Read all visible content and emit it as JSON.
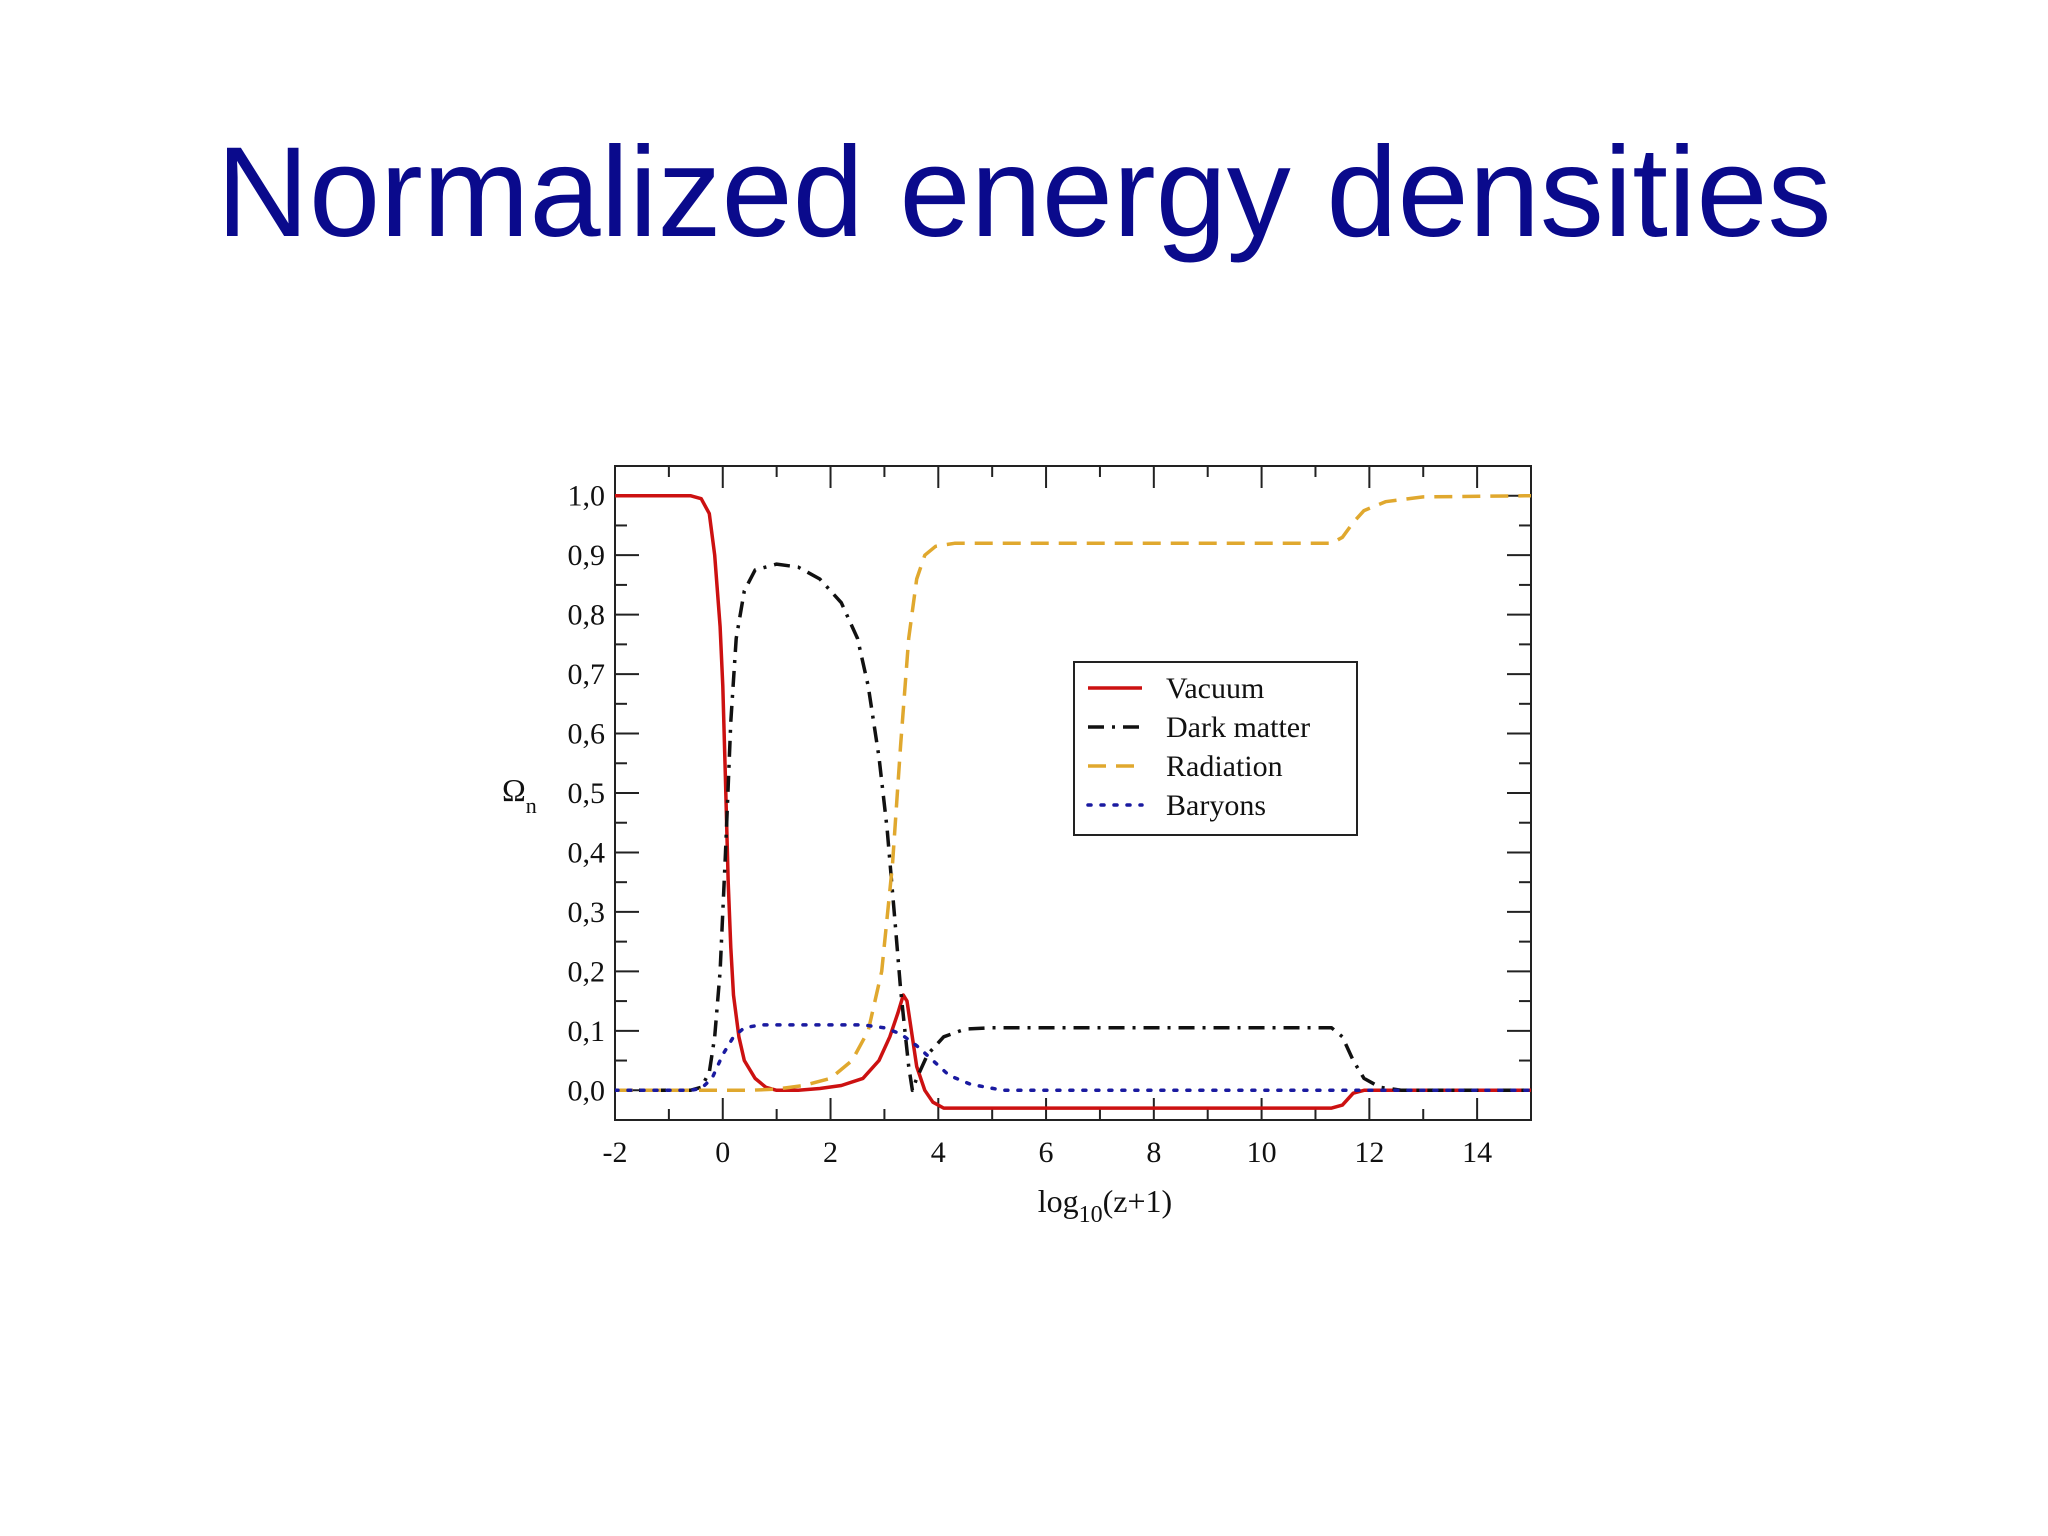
{
  "slide": {
    "title": "Normalized energy densities"
  },
  "chart_data": {
    "type": "line",
    "xlabel": "log10(z+1)",
    "xlabel_parts": {
      "base": "log",
      "sub": "10",
      "rest": "(z+1)"
    },
    "ylabel": "Ωn",
    "ylabel_parts": {
      "base": "Ω",
      "sub": "n"
    },
    "xlim": [
      -2,
      15
    ],
    "ylim": [
      -0.05,
      1.05
    ],
    "xticks": [
      -2,
      0,
      2,
      4,
      6,
      8,
      10,
      12,
      14
    ],
    "xtick_labels": [
      "-2",
      "0",
      "2",
      "4",
      "6",
      "8",
      "10",
      "12",
      "14"
    ],
    "yticks": [
      0.0,
      0.1,
      0.2,
      0.3,
      0.4,
      0.5,
      0.6,
      0.7,
      0.8,
      0.9,
      1.0
    ],
    "ytick_labels": [
      "0,0",
      "0,1",
      "0,2",
      "0,3",
      "0,4",
      "0,5",
      "0,6",
      "0,7",
      "0,8",
      "0,9",
      "1,0"
    ],
    "grid": false,
    "legend": {
      "position": "center-right"
    },
    "series": [
      {
        "name": "Vacuum",
        "color": "#cc1111",
        "dash": "solid",
        "points": [
          [
            -2,
            1.0
          ],
          [
            -0.6,
            1.0
          ],
          [
            -0.4,
            0.995
          ],
          [
            -0.25,
            0.97
          ],
          [
            -0.15,
            0.9
          ],
          [
            -0.05,
            0.78
          ],
          [
            0.0,
            0.68
          ],
          [
            0.05,
            0.52
          ],
          [
            0.1,
            0.35
          ],
          [
            0.15,
            0.24
          ],
          [
            0.2,
            0.16
          ],
          [
            0.3,
            0.09
          ],
          [
            0.4,
            0.05
          ],
          [
            0.6,
            0.02
          ],
          [
            0.8,
            0.005
          ],
          [
            1.0,
            0.0
          ],
          [
            1.4,
            0.0
          ],
          [
            1.8,
            0.003
          ],
          [
            2.2,
            0.008
          ],
          [
            2.6,
            0.02
          ],
          [
            2.9,
            0.05
          ],
          [
            3.1,
            0.09
          ],
          [
            3.25,
            0.13
          ],
          [
            3.35,
            0.16
          ],
          [
            3.42,
            0.15
          ],
          [
            3.5,
            0.1
          ],
          [
            3.6,
            0.04
          ],
          [
            3.75,
            0.0
          ],
          [
            3.9,
            -0.02
          ],
          [
            4.1,
            -0.03
          ],
          [
            11.3,
            -0.03
          ],
          [
            11.5,
            -0.025
          ],
          [
            11.7,
            -0.005
          ],
          [
            11.9,
            0.0
          ],
          [
            15,
            0.0
          ]
        ]
      },
      {
        "name": "Dark matter",
        "color": "#111111",
        "dash": "dashdot",
        "points": [
          [
            -2,
            0.0
          ],
          [
            -0.6,
            0.0
          ],
          [
            -0.4,
            0.005
          ],
          [
            -0.25,
            0.03
          ],
          [
            -0.15,
            0.09
          ],
          [
            -0.05,
            0.2
          ],
          [
            0.05,
            0.4
          ],
          [
            0.15,
            0.62
          ],
          [
            0.25,
            0.76
          ],
          [
            0.4,
            0.84
          ],
          [
            0.6,
            0.875
          ],
          [
            1.0,
            0.885
          ],
          [
            1.4,
            0.88
          ],
          [
            1.8,
            0.86
          ],
          [
            2.2,
            0.82
          ],
          [
            2.5,
            0.76
          ],
          [
            2.7,
            0.68
          ],
          [
            2.9,
            0.56
          ],
          [
            3.05,
            0.44
          ],
          [
            3.2,
            0.28
          ],
          [
            3.3,
            0.17
          ],
          [
            3.38,
            0.1
          ],
          [
            3.45,
            0.04
          ],
          [
            3.52,
            0.0
          ],
          [
            3.6,
            0.02
          ],
          [
            3.8,
            0.06
          ],
          [
            4.1,
            0.09
          ],
          [
            4.5,
            0.103
          ],
          [
            5,
            0.105
          ],
          [
            11.3,
            0.105
          ],
          [
            11.5,
            0.09
          ],
          [
            11.7,
            0.05
          ],
          [
            11.9,
            0.02
          ],
          [
            12.2,
            0.005
          ],
          [
            12.6,
            0.0
          ],
          [
            15,
            0.0
          ]
        ]
      },
      {
        "name": "Radiation",
        "color": "#e0a82e",
        "dash": "dashed",
        "points": [
          [
            -2,
            0.0
          ],
          [
            0.5,
            0.0
          ],
          [
            1.0,
            0.002
          ],
          [
            1.5,
            0.008
          ],
          [
            2.0,
            0.02
          ],
          [
            2.4,
            0.05
          ],
          [
            2.7,
            0.1
          ],
          [
            2.95,
            0.2
          ],
          [
            3.15,
            0.38
          ],
          [
            3.3,
            0.58
          ],
          [
            3.45,
            0.76
          ],
          [
            3.6,
            0.86
          ],
          [
            3.75,
            0.9
          ],
          [
            3.95,
            0.915
          ],
          [
            4.3,
            0.92
          ],
          [
            11.3,
            0.92
          ],
          [
            11.5,
            0.93
          ],
          [
            11.7,
            0.955
          ],
          [
            11.9,
            0.975
          ],
          [
            12.3,
            0.99
          ],
          [
            13,
            0.998
          ],
          [
            15,
            1.0
          ]
        ]
      },
      {
        "name": "Baryons",
        "color": "#1a1aa0",
        "dash": "dotted",
        "points": [
          [
            -2,
            0.0
          ],
          [
            -0.6,
            0.0
          ],
          [
            -0.4,
            0.003
          ],
          [
            -0.2,
            0.02
          ],
          [
            0.0,
            0.06
          ],
          [
            0.2,
            0.09
          ],
          [
            0.4,
            0.105
          ],
          [
            0.7,
            0.11
          ],
          [
            2.6,
            0.11
          ],
          [
            3.0,
            0.105
          ],
          [
            3.3,
            0.095
          ],
          [
            3.6,
            0.075
          ],
          [
            3.9,
            0.05
          ],
          [
            4.2,
            0.025
          ],
          [
            4.6,
            0.01
          ],
          [
            5.2,
            0.0
          ],
          [
            15,
            0.0
          ]
        ]
      }
    ]
  }
}
